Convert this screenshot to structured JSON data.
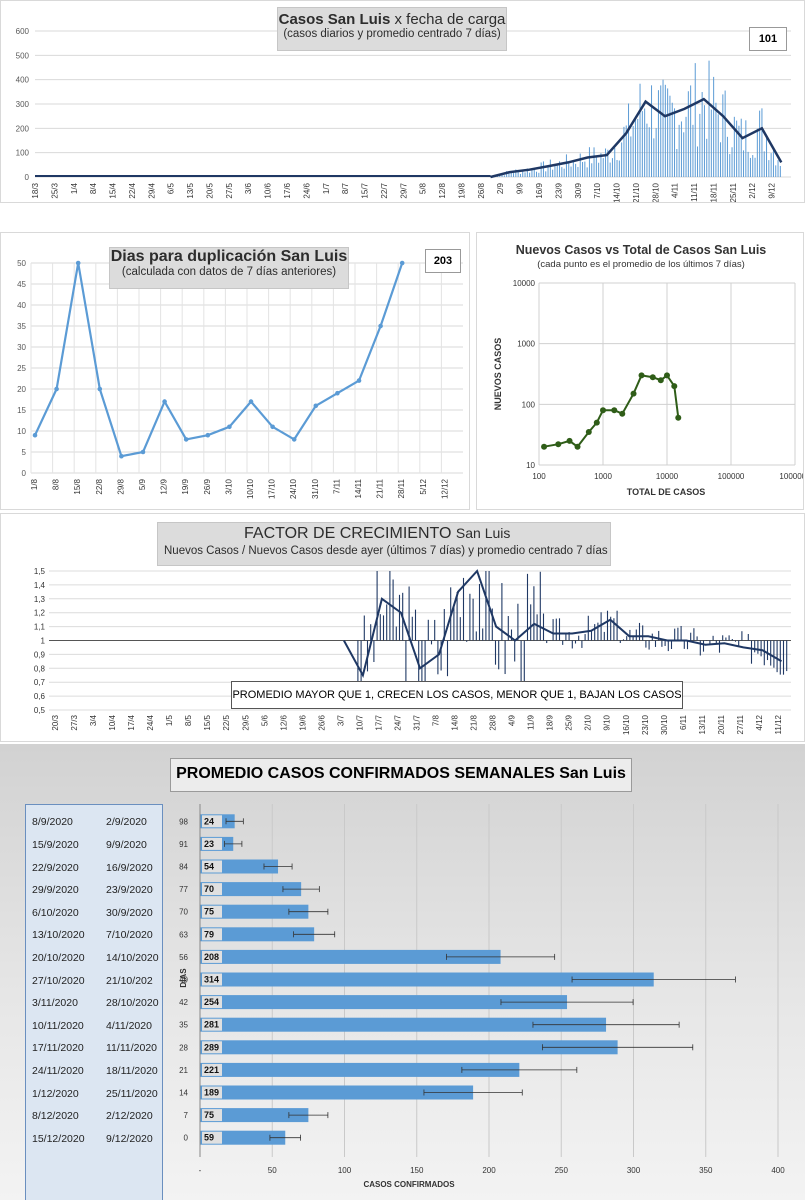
{
  "panel1": {
    "title_bold": "Casos San Luis",
    "title_rest": "x fecha de carga",
    "subtitle": "(casos diarios y promedio  centrado  7 días)",
    "badge": "101",
    "y_ticks": [
      "0",
      "100",
      "200",
      "300",
      "400",
      "500",
      "600"
    ],
    "x_ticks": [
      "18/3",
      "25/3",
      "1/4",
      "8/4",
      "15/4",
      "22/4",
      "29/4",
      "6/5",
      "13/5",
      "20/5",
      "27/5",
      "3/6",
      "10/6",
      "17/6",
      "24/6",
      "1/7",
      "8/7",
      "15/7",
      "22/7",
      "29/7",
      "5/8",
      "12/8",
      "19/8",
      "26/8",
      "2/9",
      "9/9",
      "16/9",
      "23/9",
      "30/9",
      "7/10",
      "14/10",
      "21/10",
      "28/10",
      "4/11",
      "11/11",
      "18/11",
      "25/11",
      "2/12",
      "9/12"
    ]
  },
  "panel2": {
    "title": "Dias para duplicación San Luis",
    "subtitle": "(calculada con datos de 7 días anteriores)",
    "badge": "203",
    "y_ticks": [
      "0",
      "5",
      "10",
      "15",
      "20",
      "25",
      "30",
      "35",
      "40",
      "45",
      "50"
    ],
    "x_ticks": [
      "1/8",
      "8/8",
      "15/8",
      "22/8",
      "29/8",
      "5/9",
      "12/9",
      "19/9",
      "26/9",
      "3/10",
      "10/10",
      "17/10",
      "24/10",
      "31/10",
      "7/11",
      "14/11",
      "21/11",
      "28/11",
      "5/12",
      "12/12"
    ]
  },
  "panel3": {
    "title": "Nuevos Casos vs Total de Casos San Luis",
    "subtitle": "(cada punto es el promedio de los últimos 7 días)",
    "ylabel": "NUEVOS  CASOS",
    "xlabel": "TOTAL DE CASOS",
    "y_ticks": [
      "10",
      "100",
      "1000",
      "10000"
    ],
    "x_ticks": [
      "100",
      "1000",
      "10000",
      "100000",
      "1000000"
    ]
  },
  "panel4": {
    "title": "FACTOR DE CRECIMIENTO",
    "title_rest": "San Luis",
    "subtitle": "Nuevos Casos  / Nuevos Casos desde ayer (últimos 7 días) y promedio  centrado  7 días",
    "note": "PROMEDIO MAYOR QUE 1, CRECEN LOS CASOS, MENOR QUE 1, BAJAN LOS CASOS",
    "y_ticks": [
      "0,5",
      "0,6",
      "0,7",
      "0,8",
      "0,9",
      "1",
      "1,1",
      "1,2",
      "1,3",
      "1,4",
      "1,5"
    ],
    "x_ticks": [
      "20/3",
      "27/3",
      "3/4",
      "10/4",
      "17/4",
      "24/4",
      "1/5",
      "8/5",
      "15/5",
      "22/5",
      "29/5",
      "5/6",
      "12/6",
      "19/6",
      "26/6",
      "3/7",
      "10/7",
      "17/7",
      "24/7",
      "31/7",
      "7/8",
      "14/8",
      "21/8",
      "28/8",
      "4/9",
      "11/9",
      "18/9",
      "25/9",
      "2/10",
      "9/10",
      "16/10",
      "23/10",
      "30/10",
      "6/11",
      "13/11",
      "20/11",
      "27/11",
      "4/12",
      "11/12"
    ]
  },
  "panel5": {
    "title": "PROMEDIO CASOS CONFIRMADOS SEMANALES San Luis",
    "xlabel": "CASOS CONFIRMADOS",
    "ylabel": "DIAS",
    "x_ticks": [
      "-",
      "50",
      "100",
      "150",
      "200",
      "250",
      "300",
      "350",
      "400"
    ],
    "rows": [
      {
        "end": "8/9/2020",
        "start": "2/9/2020",
        "dias": "98",
        "value": 24
      },
      {
        "end": "15/9/2020",
        "start": "9/9/2020",
        "dias": "91",
        "value": 23
      },
      {
        "end": "22/9/2020",
        "start": "16/9/2020",
        "dias": "84",
        "value": 54
      },
      {
        "end": "29/9/2020",
        "start": "23/9/2020",
        "dias": "77",
        "value": 70
      },
      {
        "end": "6/10/2020",
        "start": "30/9/2020",
        "dias": "70",
        "value": 75
      },
      {
        "end": "13/10/2020",
        "start": "7/10/2020",
        "dias": "63",
        "value": 79
      },
      {
        "end": "20/10/2020",
        "start": "14/10/2020",
        "dias": "56",
        "value": 208
      },
      {
        "end": "27/10/2020",
        "start": "21/10/202",
        "dias": "49",
        "value": 314
      },
      {
        "end": "3/11/2020",
        "start": "28/10/2020",
        "dias": "42",
        "value": 254
      },
      {
        "end": "10/11/2020",
        "start": "4/11/2020",
        "dias": "35",
        "value": 281
      },
      {
        "end": "17/11/2020",
        "start": "11/11/2020",
        "dias": "28",
        "value": 289
      },
      {
        "end": "24/11/2020",
        "start": "18/11/2020",
        "dias": "21",
        "value": 221
      },
      {
        "end": "1/12/2020",
        "start": "25/11/2020",
        "dias": "14",
        "value": 189
      },
      {
        "end": "8/12/2020",
        "start": "2/12/2020",
        "dias": "7",
        "value": 75
      },
      {
        "end": "15/12/2020",
        "start": "9/12/2020",
        "dias": "0",
        "value": 59
      }
    ]
  },
  "colors": {
    "avg_line": "#1f3864",
    "bars": "#5b9bd5",
    "doubling": "#5b9bd5",
    "scatter": "#2f5d18",
    "factor": "#1f3864",
    "hbar": "#5b9bd5",
    "datebox": "#dce6f2"
  },
  "chart_data": [
    {
      "type": "line",
      "title": "Casos San Luis x fecha de carga",
      "subtitle": "(casos diarios y promedio  centrado  7 días)",
      "ylim": [
        0,
        600
      ],
      "series": [
        {
          "values_desc": "daily bars"
        },
        {
          "x": [
            "26/8",
            "2/9",
            "9/9",
            "16/9",
            "23/9",
            "30/9",
            "7/10",
            "14/10",
            "21/10",
            "28/10",
            "4/11",
            "11/11",
            "18/11",
            "25/11",
            "2/12",
            "9/12"
          ],
          "y": [
            0,
            20,
            30,
            45,
            60,
            80,
            90,
            180,
            310,
            250,
            280,
            320,
            250,
            160,
            200,
            60
          ]
        }
      ]
    },
    {
      "type": "line",
      "title": "Dias para duplicación San Luis",
      "ylim": [
        0,
        50
      ],
      "x": [
        "1/8",
        "8/8",
        "15/8",
        "22/8",
        "29/8",
        "5/9",
        "12/9",
        "19/9",
        "26/9",
        "3/10",
        "10/10",
        "17/10",
        "24/10",
        "31/10",
        "7/11",
        "14/11",
        "21/11",
        "28/11"
      ],
      "y": [
        9,
        20,
        50,
        20,
        4,
        5,
        17,
        8,
        9,
        11,
        17,
        11,
        8,
        16,
        19,
        22,
        35,
        50
      ]
    },
    {
      "type": "scatter",
      "title": "Nuevos Casos vs Total de Casos San Luis",
      "xlabel": "TOTAL DE CASOS",
      "ylabel": "NUEVOS  CASOS",
      "log": true,
      "x": [
        120,
        200,
        300,
        400,
        600,
        800,
        1000,
        1500,
        2000,
        3000,
        4000,
        6000,
        8000,
        10000,
        13000,
        15000
      ],
      "y": [
        20,
        22,
        25,
        20,
        35,
        50,
        80,
        80,
        70,
        150,
        300,
        280,
        250,
        300,
        200,
        60
      ]
    },
    {
      "type": "line",
      "title": "FACTOR DE CRECIMIENTO San Luis",
      "ylim": [
        0.5,
        1.5
      ],
      "x": [
        "3/7",
        "10/7",
        "17/7",
        "24/7",
        "31/7",
        "7/8",
        "14/8",
        "21/8",
        "28/8",
        "4/9",
        "11/9",
        "18/9",
        "25/9",
        "2/10",
        "9/10",
        "16/10",
        "23/10",
        "30/10",
        "6/11",
        "13/11",
        "20/11",
        "27/11",
        "4/12",
        "11/12"
      ],
      "y": [
        1,
        0.75,
        1.3,
        1.2,
        0.8,
        0.9,
        1.35,
        1.5,
        1.1,
        1.0,
        1.12,
        1.05,
        1.05,
        1.07,
        1.15,
        1.03,
        1.03,
        1.0,
        1.0,
        0.97,
        0.98,
        0.95,
        0.93,
        0.85
      ]
    },
    {
      "type": "bar",
      "title": "PROMEDIO CASOS CONFIRMADOS SEMANALES San Luis",
      "xlabel": "CASOS CONFIRMADOS",
      "ylabel": "DIAS",
      "categories": [
        "98",
        "91",
        "84",
        "77",
        "70",
        "63",
        "56",
        "49",
        "42",
        "35",
        "28",
        "21",
        "14",
        "7",
        "0"
      ],
      "values": [
        24,
        23,
        54,
        70,
        75,
        79,
        208,
        314,
        254,
        281,
        289,
        221,
        189,
        75,
        59
      ],
      "xlim": [
        0,
        400
      ]
    }
  ]
}
